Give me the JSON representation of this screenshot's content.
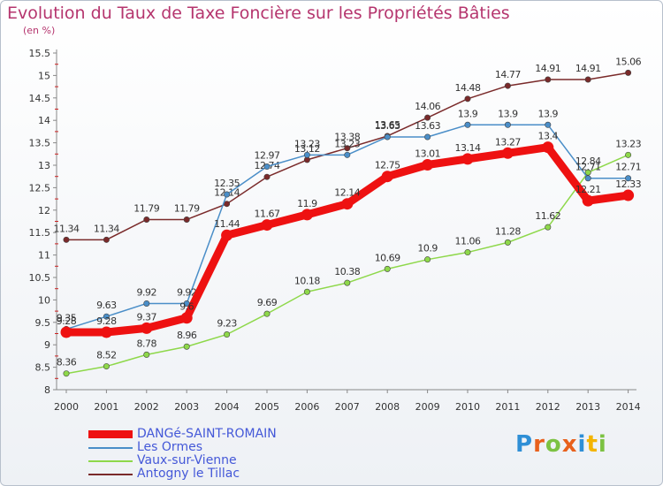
{
  "header": {
    "title": "Evolution du Taux de Taxe Foncière sur les Propriétés Bâties",
    "unit": "(en %)"
  },
  "logo": {
    "text": "Proxiti"
  },
  "chart_data": {
    "type": "line",
    "title": "Evolution du Taux de Taxe Foncière sur les Propriétés Bâties",
    "ylabel": "(en %)",
    "xlabel": "",
    "ylim": [
      8,
      15.5
    ],
    "y_ticks": [
      "8",
      "8.5",
      "9",
      "9.5",
      "10",
      "10.5",
      "11",
      "11.5",
      "12",
      "12.5",
      "13",
      "13.5",
      "14",
      "14.5",
      "15",
      "15.5"
    ],
    "categories": [
      "2000",
      "2001",
      "2002",
      "2003",
      "2004",
      "2005",
      "2006",
      "2007",
      "2008",
      "2009",
      "2010",
      "2011",
      "2012",
      "2013",
      "2014"
    ],
    "series": [
      {
        "name": "Antogny le Tillac",
        "color": "#7a2a2a",
        "width": 1.5,
        "values": [
          11.34,
          11.34,
          11.79,
          11.79,
          12.14,
          12.74,
          13.12,
          13.38,
          13.65,
          14.06,
          14.48,
          14.77,
          14.91,
          14.91,
          15.06
        ],
        "labels": [
          "11.34",
          "11.34",
          "11.79",
          "11.79",
          "12.14",
          "12.74",
          "13.12",
          "13.38",
          "13.65",
          "14.06",
          "14.48",
          "14.77",
          "14.91",
          "14.91",
          "15.06"
        ]
      },
      {
        "name": "Vaux-sur-Vienne",
        "color": "#8ed84a",
        "width": 1.5,
        "values": [
          8.36,
          8.52,
          8.78,
          8.96,
          9.23,
          9.69,
          10.18,
          10.38,
          10.69,
          10.9,
          11.06,
          11.28,
          11.62,
          12.84,
          13.23
        ],
        "labels": [
          "8.36",
          "8.52",
          "8.78",
          "8.96",
          "9.23",
          "9.69",
          "10.18",
          "10.38",
          "10.69",
          "10.9",
          "11.06",
          "11.28",
          "11.62",
          "12.84",
          "13.23"
        ]
      },
      {
        "name": "Les Ormes",
        "color": "#4a8ec8",
        "width": 1.5,
        "values": [
          9.35,
          9.63,
          9.92,
          9.92,
          12.35,
          12.97,
          13.23,
          13.23,
          13.63,
          13.63,
          13.9,
          13.9,
          13.9,
          12.71,
          12.71
        ],
        "labels": [
          "9.35",
          "9.63",
          "9.92",
          "9.92",
          "12.35",
          "12.97",
          "13.23",
          "13.23",
          "13.63",
          "13.63",
          "13.9",
          "13.9",
          "13.9",
          "12.71",
          "12.71"
        ]
      },
      {
        "name": "DANGé-SAINT-ROMAIN",
        "color": "#ee1111",
        "width": 9,
        "values": [
          9.28,
          9.28,
          9.37,
          9.6,
          11.44,
          11.67,
          11.9,
          12.14,
          12.75,
          13.01,
          13.14,
          13.27,
          13.4,
          12.21,
          12.33
        ],
        "labels": [
          "9.28",
          "9.28",
          "9.37",
          "9.6",
          "11.44",
          "11.67",
          "11.9",
          "12.14",
          "12.75",
          "13.01",
          "13.14",
          "13.27",
          "13.4",
          "12.21",
          "12.33"
        ]
      }
    ],
    "legend": [
      "DANGé-SAINT-ROMAIN",
      "Les Ormes",
      "Vaux-sur-Vienne",
      "Antogny le Tillac"
    ],
    "legend_colors": [
      "#ee1111",
      "#4a8ec8",
      "#8ed84a",
      "#7a2a2a"
    ],
    "grid": false
  }
}
